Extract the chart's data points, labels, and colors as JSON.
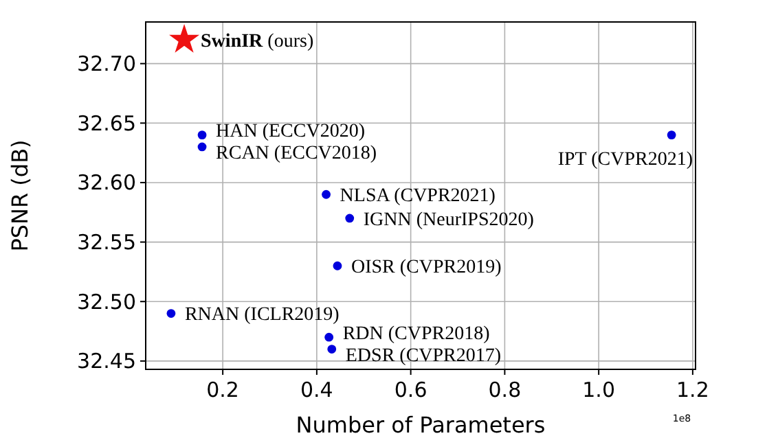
{
  "chart_data": {
    "type": "scatter",
    "xlabel": "Number of Parameters",
    "ylabel": "PSNR (dB)",
    "xlim": [
      0.036,
      1.206
    ],
    "ylim": [
      32.443,
      32.735
    ],
    "xticks": [
      0.2,
      0.4,
      0.6,
      0.8,
      {
        "value": 1.0,
        "label": "1.0"
      },
      1.2
    ],
    "yticks": [
      {
        "value": 32.45,
        "label": "32.45"
      },
      {
        "value": 32.5,
        "label": "32.50"
      },
      {
        "value": 32.55,
        "label": "32.55"
      },
      {
        "value": 32.6,
        "label": "32.60"
      },
      {
        "value": 32.65,
        "label": "32.65"
      },
      {
        "value": 32.7,
        "label": "32.70"
      }
    ],
    "grid": true,
    "series": [
      {
        "name": "SwinIR (ours)",
        "color": "#ee1111",
        "marker": "star",
        "x": [
          0.118
        ],
        "values": [
          32.72
        ]
      },
      {
        "color": "#0000dd",
        "marker": "circle",
        "x": [
          0.156,
          0.156,
          1.155,
          0.42,
          0.47,
          0.444,
          0.09,
          0.426,
          0.432
        ],
        "values": [
          32.64,
          32.63,
          32.64,
          32.59,
          32.57,
          32.53,
          32.49,
          32.47,
          32.46
        ]
      }
    ],
    "annotations": [
      {
        "text": "HAN (ECCV2020)",
        "x": 0.156,
        "y": 32.64
      },
      {
        "text": "RCAN (ECCV2018)",
        "x": 0.156,
        "y": 32.63
      },
      {
        "text": "IPT (CVPR2021)",
        "x": 1.155,
        "y": 32.64
      },
      {
        "text": "NLSA (CVPR2021)",
        "x": 0.42,
        "y": 32.59
      },
      {
        "text": "IGNN (NeurIPS2020)",
        "x": 0.47,
        "y": 32.57
      },
      {
        "text": "OISR (CVPR2019)",
        "x": 0.444,
        "y": 32.53
      },
      {
        "text": "RNAN (ICLR2019)",
        "x": 0.09,
        "y": 32.49
      },
      {
        "text": "RDN (CVPR2018)",
        "x": 0.426,
        "y": 32.47
      },
      {
        "text": "EDSR (CVPR2017)",
        "x": 0.432,
        "y": 32.46
      },
      "1e8"
    ]
  }
}
